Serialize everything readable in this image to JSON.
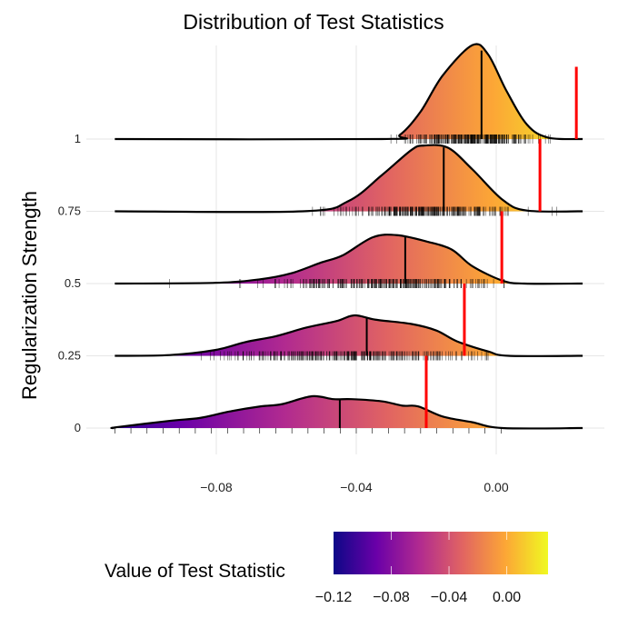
{
  "chart_data": {
    "type": "ridgeline-density",
    "title": "Distribution of Test Statistics",
    "xlabel": "",
    "ylabel": "Regularization Strength",
    "xlim": [
      -0.109,
      0.0247
    ],
    "x_ticks": [
      "-0.08",
      "-0.04",
      "0.00"
    ],
    "x_tick_values": [
      -0.08,
      -0.04,
      0.0
    ],
    "grid": true,
    "colormap": "plasma",
    "colormap_stops": [
      "#0d0887",
      "#6a00a8",
      "#b12a90",
      "#e16462",
      "#fca636",
      "#f0f921"
    ],
    "median_line_color": "#000000",
    "observed_line_color": "#ff0000",
    "legend": {
      "title": "Value of Test Statistic",
      "placement": "bottom",
      "range": [
        -0.12,
        0.0286
      ],
      "ticks": [
        "-0.12",
        "-0.08",
        "-0.04",
        "0.00"
      ],
      "tick_values": [
        -0.12,
        -0.08,
        -0.04,
        0.0
      ]
    },
    "ridges": [
      {
        "label": "1",
        "median": -0.0042,
        "observed": 0.0229,
        "density": [
          [
            -0.109,
            0
          ],
          [
            -0.0327,
            0
          ],
          [
            -0.0275,
            0.06
          ],
          [
            -0.0216,
            0.38
          ],
          [
            -0.0153,
            0.88
          ],
          [
            -0.0068,
            1.3
          ],
          [
            -0.0023,
            1.17
          ],
          [
            0.0029,
            0.67
          ],
          [
            0.0088,
            0.2
          ],
          [
            0.0148,
            0.02
          ],
          [
            0.0247,
            0
          ]
        ]
      },
      {
        "label": "0.75",
        "median": -0.015,
        "observed": 0.0125,
        "density": [
          [
            -0.109,
            0
          ],
          [
            -0.0553,
            0
          ],
          [
            -0.0423,
            0.14
          ],
          [
            -0.0327,
            0.5
          ],
          [
            -0.0242,
            0.85
          ],
          [
            -0.0206,
            0.91
          ],
          [
            -0.0138,
            0.88
          ],
          [
            -0.0068,
            0.58
          ],
          [
            0.0018,
            0.16
          ],
          [
            0.0088,
            0.01
          ],
          [
            0.0247,
            0
          ]
        ]
      },
      {
        "label": "0.5",
        "median": -0.026,
        "observed": 0.0016,
        "density": [
          [
            -0.109,
            0
          ],
          [
            -0.0803,
            0.01
          ],
          [
            -0.0673,
            0.06
          ],
          [
            -0.0587,
            0.14
          ],
          [
            -0.0501,
            0.29
          ],
          [
            -0.0439,
            0.39
          ],
          [
            -0.0353,
            0.64
          ],
          [
            -0.0283,
            0.67
          ],
          [
            -0.0197,
            0.58
          ],
          [
            -0.0127,
            0.47
          ],
          [
            -0.0068,
            0.24
          ],
          [
            0.0018,
            0.04
          ],
          [
            0.008,
            0
          ],
          [
            0.0247,
            0
          ]
        ]
      },
      {
        "label": "0.25",
        "median": -0.037,
        "observed": -0.0091,
        "density": [
          [
            -0.109,
            0
          ],
          [
            -0.0933,
            0.01
          ],
          [
            -0.0803,
            0.08
          ],
          [
            -0.0717,
            0.19
          ],
          [
            -0.0631,
            0.27
          ],
          [
            -0.0543,
            0.39
          ],
          [
            -0.0457,
            0.48
          ],
          [
            -0.0405,
            0.56
          ],
          [
            -0.0345,
            0.5
          ],
          [
            -0.0242,
            0.44
          ],
          [
            -0.0171,
            0.35
          ],
          [
            -0.0112,
            0.2
          ],
          [
            -0.0023,
            0.06
          ],
          [
            0.0036,
            0
          ],
          [
            0.0247,
            0
          ]
        ]
      },
      {
        "label": "0",
        "median": -0.0447,
        "observed": -0.02,
        "density": [
          [
            -0.109,
            0
          ],
          [
            -0.1088,
            0.01
          ],
          [
            -0.0933,
            0.1
          ],
          [
            -0.0847,
            0.14
          ],
          [
            -0.0761,
            0.23
          ],
          [
            -0.0673,
            0.3
          ],
          [
            -0.0613,
            0.33
          ],
          [
            -0.0527,
            0.44
          ],
          [
            -0.0465,
            0.4
          ],
          [
            -0.0413,
            0.4
          ],
          [
            -0.0327,
            0.37
          ],
          [
            -0.0268,
            0.31
          ],
          [
            -0.0223,
            0.3
          ],
          [
            -0.0153,
            0.16
          ],
          [
            -0.0068,
            0.08
          ],
          [
            0.0018,
            0
          ],
          [
            0.0247,
            0
          ]
        ]
      }
    ]
  }
}
